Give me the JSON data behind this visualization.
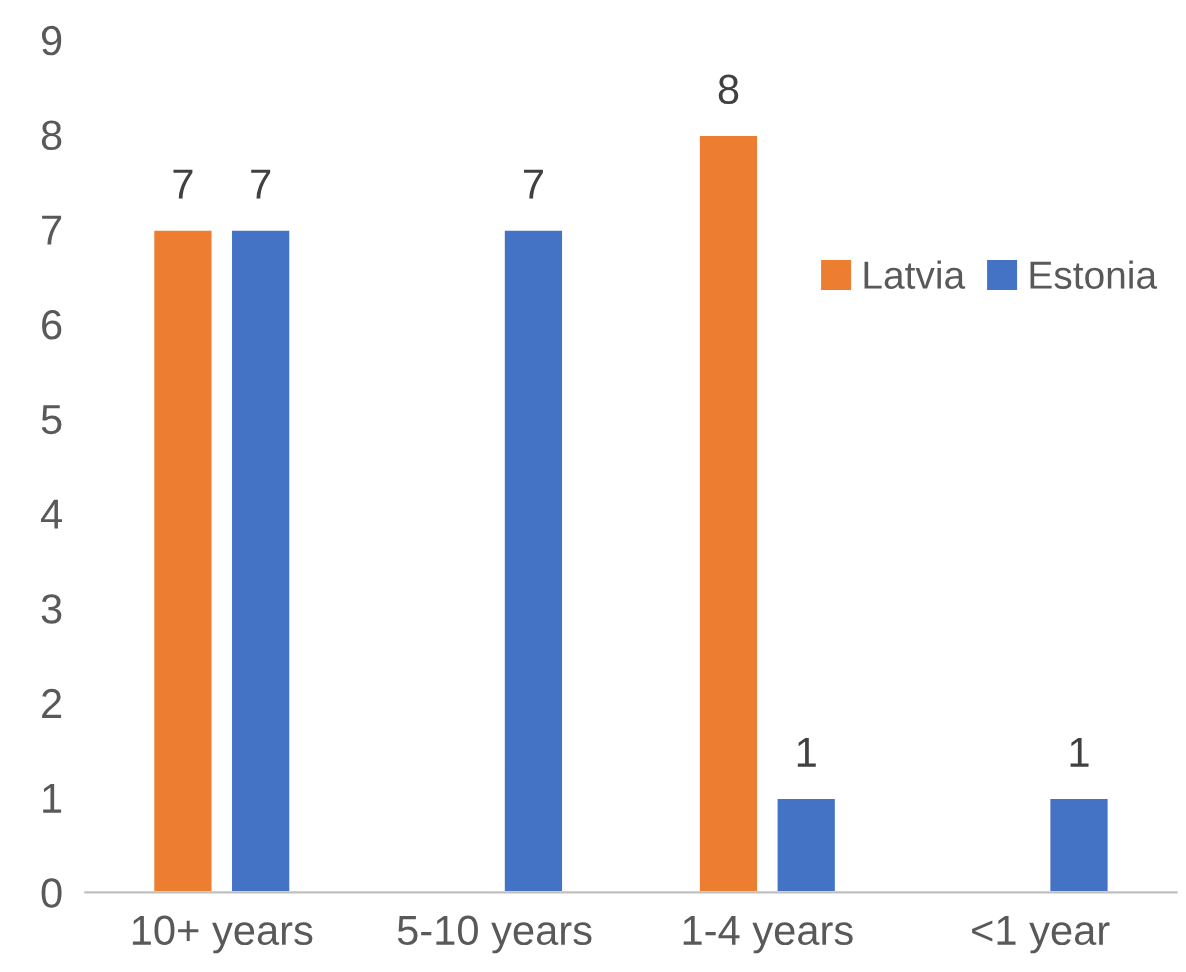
{
  "chart_data": {
    "type": "bar",
    "categories": [
      "10+ years",
      "5-10 years",
      "1-4 years",
      "<1 year"
    ],
    "series": [
      {
        "name": "Latvia",
        "color": "#ed7d31",
        "values": [
          7,
          null,
          8,
          null
        ]
      },
      {
        "name": "Estonia",
        "color": "#4472c4",
        "values": [
          7,
          7,
          1,
          1
        ]
      }
    ],
    "ylim": [
      0,
      9
    ],
    "yticks": [
      0,
      1,
      2,
      3,
      4,
      5,
      6,
      7,
      8,
      9
    ],
    "grid": false,
    "legend": "right",
    "data_labels": true
  }
}
